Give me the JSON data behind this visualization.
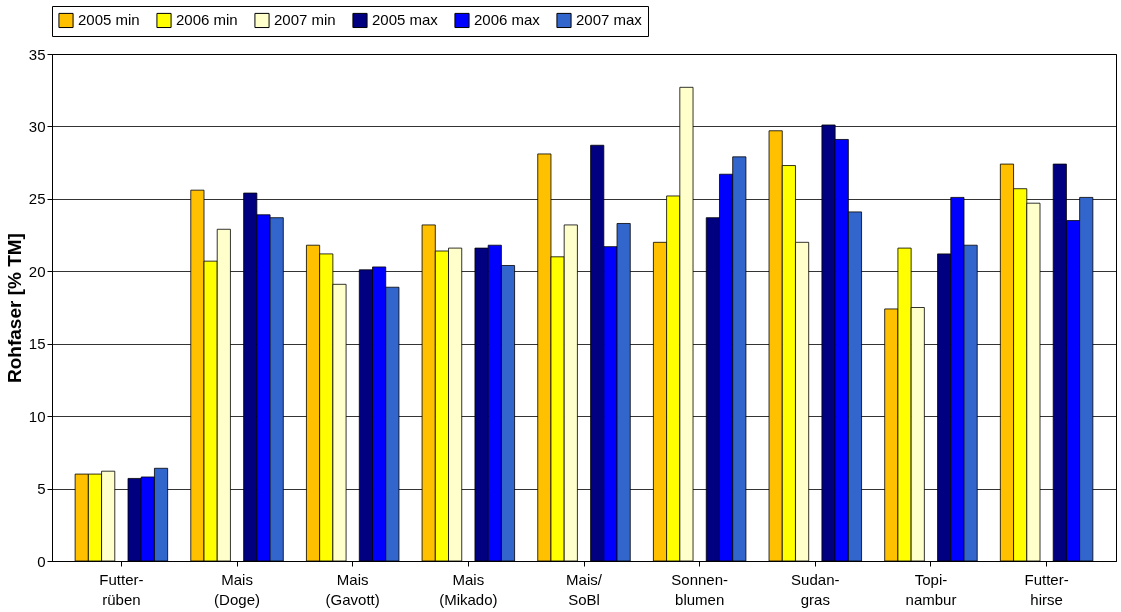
{
  "chart_data": {
    "type": "bar",
    "ylabel": "Rohfaser [% TM]",
    "categories": [
      "Futter-\nrüben",
      "Mais\n(Doge)",
      "Mais\n(Gavott)",
      "Mais\n(Mikado)",
      "Mais/\nSoBl",
      "Sonnen-\nblumen",
      "Sudan-\ngras",
      "Topi-\nnambur",
      "Futter-\nhirse"
    ],
    "series": [
      {
        "name": "2005 min",
        "color": "#ffc000",
        "values": [
          6.0,
          25.6,
          21.8,
          23.2,
          28.1,
          22.0,
          29.7,
          17.4,
          27.4
        ]
      },
      {
        "name": "2006 min",
        "color": "#ffff00",
        "values": [
          6.0,
          20.7,
          21.2,
          21.4,
          21.0,
          25.2,
          27.3,
          21.6,
          25.7
        ]
      },
      {
        "name": "2007 min",
        "color": "#ffffcc",
        "values": [
          6.2,
          22.9,
          19.1,
          21.6,
          23.2,
          32.7,
          22.0,
          17.5,
          24.7
        ]
      },
      {
        "name": "2005 max",
        "color": "#000080",
        "values": [
          5.7,
          25.4,
          20.1,
          21.6,
          28.7,
          23.7,
          30.1,
          21.2,
          27.4
        ]
      },
      {
        "name": "2006 max",
        "color": "#0000ff",
        "values": [
          5.8,
          23.9,
          20.3,
          21.8,
          21.7,
          26.7,
          29.1,
          25.1,
          23.5
        ]
      },
      {
        "name": "2007 max",
        "color": "#3366cc",
        "values": [
          6.4,
          23.7,
          18.9,
          20.4,
          23.3,
          27.9,
          24.1,
          21.8,
          25.1
        ]
      }
    ],
    "ylim": [
      0,
      35
    ],
    "yticks": [
      0,
      5,
      10,
      15,
      20,
      25,
      30,
      35
    ],
    "grid": "y",
    "legend": "top"
  }
}
